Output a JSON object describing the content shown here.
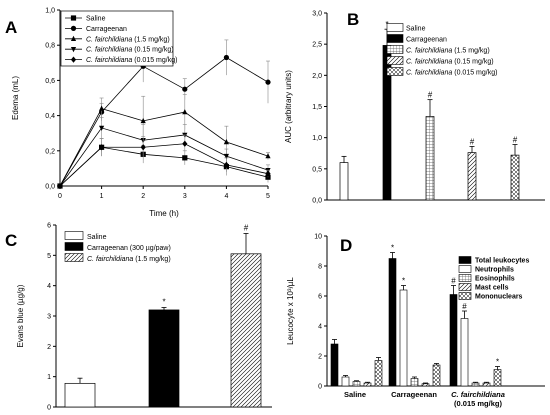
{
  "chart_data": [
    {
      "panel": "A",
      "type": "line",
      "xlabel": "Time (h)",
      "ylabel": "Edema (mL)",
      "xlim": [
        0,
        5
      ],
      "ylim": [
        0.0,
        1.0
      ],
      "xticks": [
        "0",
        "1",
        "2",
        "3",
        "4",
        "5"
      ],
      "yticks": [
        "0,0",
        "0,2",
        "0,4",
        "0,6",
        "0,8",
        "1,0"
      ],
      "legend_position": "top-left",
      "x": [
        0,
        1,
        2,
        3,
        4,
        5
      ],
      "series": [
        {
          "name": "Saline",
          "marker": "square",
          "values": [
            0.0,
            0.22,
            0.18,
            0.16,
            0.11,
            0.05
          ],
          "err": [
            0.0,
            0.05,
            0.05,
            0.04,
            0.05,
            0.03
          ]
        },
        {
          "name": "Carrageenan",
          "marker": "circle",
          "values": [
            0.0,
            0.42,
            0.68,
            0.55,
            0.73,
            0.59
          ],
          "err": [
            0.0,
            0.05,
            0.09,
            0.06,
            0.1,
            0.12
          ]
        },
        {
          "name_parts": [
            "C. fairchildiana",
            " (1.5 mg/kg)"
          ],
          "marker": "triangle-up",
          "values": [
            0.0,
            0.44,
            0.37,
            0.42,
            0.25,
            0.17
          ],
          "err": [
            0.0,
            0.06,
            0.14,
            0.1,
            0.09,
            0.02
          ]
        },
        {
          "name_parts": [
            "C. fairchildiana",
            " (0.15 mg/kg)"
          ],
          "marker": "triangle-down",
          "values": [
            0.0,
            0.33,
            0.26,
            0.29,
            0.17,
            0.09
          ],
          "err": [
            0.0,
            0.06,
            0.09,
            0.06,
            0.04,
            0.03
          ]
        },
        {
          "name_parts": [
            "C. fairchildiana",
            " (0.015 mg/kg)"
          ],
          "marker": "diamond",
          "values": [
            0.0,
            0.22,
            0.22,
            0.24,
            0.12,
            0.07
          ],
          "err": [
            0.0,
            0.05,
            0.06,
            0.05,
            0.04,
            0.02
          ]
        }
      ]
    },
    {
      "panel": "B",
      "type": "bar",
      "ylabel": "AUC (arbitrary units)",
      "ylim": [
        0.0,
        3.0
      ],
      "yticks": [
        "0,0",
        "0,5",
        "1,0",
        "1,5",
        "2,0",
        "2,5",
        "3,0"
      ],
      "legend_position": "top-right",
      "series": [
        {
          "name": "Saline",
          "fill": "white",
          "value": 0.6,
          "err": 0.1,
          "mark": ""
        },
        {
          "name": "Carrageenan",
          "fill": "black",
          "value": 2.48,
          "err": 0.26,
          "mark": "*"
        },
        {
          "name_parts": [
            "C. fairchildiana",
            " (1.5 mg/kg)"
          ],
          "fill": "grid",
          "value": 1.34,
          "err": 0.27,
          "mark": "#"
        },
        {
          "name_parts": [
            "C. fairchildiana",
            " (0.15 mg/kg)"
          ],
          "fill": "hatch",
          "value": 0.76,
          "err": 0.1,
          "mark": "#"
        },
        {
          "name_parts": [
            "C. fairchildiana",
            " (0.015 mg/kg)"
          ],
          "fill": "crosshatch",
          "value": 0.72,
          "err": 0.17,
          "mark": "#"
        }
      ]
    },
    {
      "panel": "C",
      "type": "bar",
      "ylabel": "Evans blue (µg/g)",
      "ylim": [
        0,
        6
      ],
      "yticks": [
        "0",
        "1",
        "2",
        "3",
        "4",
        "5",
        "6"
      ],
      "legend_position": "top-left",
      "series": [
        {
          "name": "Saline",
          "fill": "white",
          "value": 0.78,
          "err": 0.17,
          "mark": ""
        },
        {
          "name": "Carrageenan (300 µg/paw)",
          "fill": "black",
          "value": 3.2,
          "err": 0.08,
          "mark": "*"
        },
        {
          "name_parts": [
            "C. fairchildiana",
            " (1.5 mg/kg)"
          ],
          "fill": "hatch",
          "value": 5.05,
          "err": 0.67,
          "mark": "#"
        }
      ]
    },
    {
      "panel": "D",
      "type": "bar",
      "ylabel": "Leucocyte x 10³/µL",
      "ylim": [
        0,
        10
      ],
      "yticks": [
        "0",
        "2",
        "4",
        "6",
        "8",
        "10"
      ],
      "legend_position": "top-right",
      "categories": [
        "Saline",
        "Carrageenan",
        "C. fairchildiana (0.015 mg/kg)"
      ],
      "category_label_lines": [
        [
          "Saline"
        ],
        [
          "Carrageenan"
        ],
        [
          "C. fairchildiana",
          "(0.015 mg/kg)"
        ]
      ],
      "series": [
        {
          "name": "Total leukocytes",
          "fill": "black",
          "values": [
            2.8,
            8.5,
            6.1
          ],
          "err": [
            0.3,
            0.4,
            0.6
          ],
          "marks": [
            "",
            "*",
            "#"
          ]
        },
        {
          "name": "Neutrophils",
          "fill": "white",
          "values": [
            0.6,
            6.4,
            4.5
          ],
          "err": [
            0.1,
            0.3,
            0.5
          ],
          "marks": [
            "",
            "*",
            "#"
          ]
        },
        {
          "name": "Eosinophils",
          "fill": "grid",
          "values": [
            0.3,
            0.5,
            0.2
          ],
          "err": [
            0.05,
            0.1,
            0.05
          ],
          "marks": [
            "",
            "",
            ""
          ]
        },
        {
          "name": "Mast cells",
          "fill": "hatch",
          "values": [
            0.2,
            0.15,
            0.2
          ],
          "err": [
            0.05,
            0.05,
            0.05
          ],
          "marks": [
            "",
            "",
            ""
          ]
        },
        {
          "name": "Mononuclears",
          "fill": "crosshatch",
          "values": [
            1.7,
            1.4,
            1.1
          ],
          "err": [
            0.2,
            0.1,
            0.2
          ],
          "marks": [
            "",
            "",
            "*"
          ]
        }
      ]
    }
  ]
}
